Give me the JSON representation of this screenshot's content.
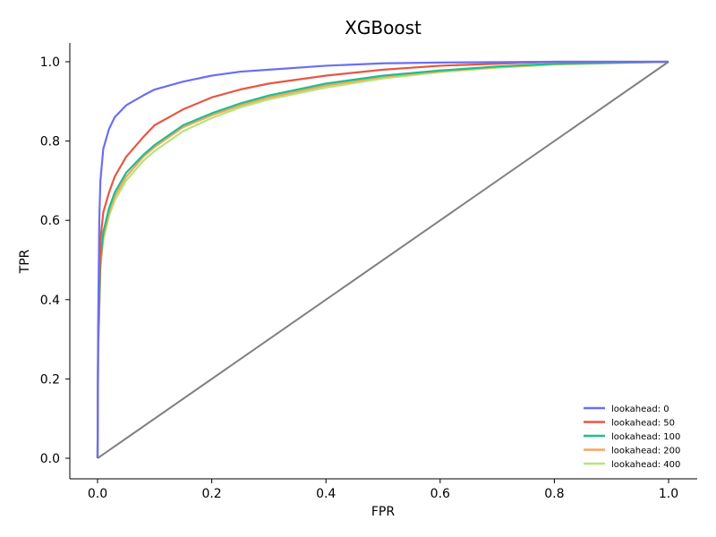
{
  "chart_data": {
    "type": "line",
    "title": "XGBoost",
    "xlabel": "FPR",
    "ylabel": "TPR",
    "xlim": [
      -0.05,
      1.05
    ],
    "ylim": [
      -0.05,
      1.05
    ],
    "xticks": [
      "0.0",
      "0.2",
      "0.4",
      "0.6",
      "0.8",
      "1.0"
    ],
    "yticks": [
      "0.0",
      "0.2",
      "0.4",
      "0.6",
      "0.8",
      "1.0"
    ],
    "grid": false,
    "legend_position": "bottom-right",
    "series": [
      {
        "name": "lookahead: 0",
        "color": "#6a6ff2",
        "points": [
          [
            0,
            0
          ],
          [
            0.001,
            0.33
          ],
          [
            0.003,
            0.6
          ],
          [
            0.005,
            0.7
          ],
          [
            0.01,
            0.78
          ],
          [
            0.02,
            0.83
          ],
          [
            0.03,
            0.86
          ],
          [
            0.05,
            0.89
          ],
          [
            0.08,
            0.915
          ],
          [
            0.1,
            0.93
          ],
          [
            0.15,
            0.95
          ],
          [
            0.2,
            0.965
          ],
          [
            0.25,
            0.975
          ],
          [
            0.3,
            0.98
          ],
          [
            0.4,
            0.99
          ],
          [
            0.5,
            0.996
          ],
          [
            0.6,
            0.998
          ],
          [
            0.8,
            1.0
          ],
          [
            1.0,
            1.0
          ]
        ]
      },
      {
        "name": "lookahead: 50",
        "color": "#e65742",
        "points": [
          [
            0,
            0
          ],
          [
            0.001,
            0.3
          ],
          [
            0.005,
            0.55
          ],
          [
            0.01,
            0.62
          ],
          [
            0.02,
            0.67
          ],
          [
            0.03,
            0.71
          ],
          [
            0.05,
            0.76
          ],
          [
            0.08,
            0.81
          ],
          [
            0.1,
            0.84
          ],
          [
            0.15,
            0.88
          ],
          [
            0.2,
            0.91
          ],
          [
            0.25,
            0.93
          ],
          [
            0.3,
            0.945
          ],
          [
            0.4,
            0.965
          ],
          [
            0.5,
            0.98
          ],
          [
            0.6,
            0.99
          ],
          [
            0.8,
            1.0
          ],
          [
            1.0,
            1.0
          ]
        ]
      },
      {
        "name": "lookahead: 100",
        "color": "#1dbf8e",
        "points": [
          [
            0,
            0
          ],
          [
            0.001,
            0.28
          ],
          [
            0.005,
            0.5
          ],
          [
            0.01,
            0.57
          ],
          [
            0.02,
            0.63
          ],
          [
            0.03,
            0.67
          ],
          [
            0.05,
            0.72
          ],
          [
            0.08,
            0.765
          ],
          [
            0.1,
            0.79
          ],
          [
            0.15,
            0.84
          ],
          [
            0.2,
            0.87
          ],
          [
            0.25,
            0.895
          ],
          [
            0.3,
            0.915
          ],
          [
            0.4,
            0.945
          ],
          [
            0.5,
            0.965
          ],
          [
            0.6,
            0.978
          ],
          [
            0.7,
            0.988
          ],
          [
            0.8,
            0.995
          ],
          [
            1.0,
            1.0
          ]
        ]
      },
      {
        "name": "lookahead: 200",
        "color": "#f7a35c",
        "points": [
          [
            0,
            0
          ],
          [
            0.001,
            0.27
          ],
          [
            0.005,
            0.49
          ],
          [
            0.01,
            0.56
          ],
          [
            0.02,
            0.62
          ],
          [
            0.03,
            0.66
          ],
          [
            0.05,
            0.71
          ],
          [
            0.08,
            0.76
          ],
          [
            0.1,
            0.785
          ],
          [
            0.15,
            0.835
          ],
          [
            0.2,
            0.865
          ],
          [
            0.25,
            0.89
          ],
          [
            0.3,
            0.91
          ],
          [
            0.4,
            0.94
          ],
          [
            0.5,
            0.962
          ],
          [
            0.6,
            0.976
          ],
          [
            0.7,
            0.987
          ],
          [
            0.8,
            0.994
          ],
          [
            1.0,
            1.0
          ]
        ]
      },
      {
        "name": "lookahead: 400",
        "color": "#b3e67a",
        "points": [
          [
            0,
            0
          ],
          [
            0.001,
            0.26
          ],
          [
            0.005,
            0.48
          ],
          [
            0.01,
            0.55
          ],
          [
            0.02,
            0.61
          ],
          [
            0.03,
            0.65
          ],
          [
            0.05,
            0.7
          ],
          [
            0.08,
            0.75
          ],
          [
            0.1,
            0.775
          ],
          [
            0.15,
            0.825
          ],
          [
            0.2,
            0.858
          ],
          [
            0.25,
            0.885
          ],
          [
            0.3,
            0.905
          ],
          [
            0.4,
            0.935
          ],
          [
            0.5,
            0.958
          ],
          [
            0.6,
            0.974
          ],
          [
            0.7,
            0.985
          ],
          [
            0.8,
            0.993
          ],
          [
            1.0,
            1.0
          ]
        ]
      }
    ],
    "reference_line": {
      "color": "#808080",
      "points": [
        [
          0,
          0
        ],
        [
          1,
          1
        ]
      ]
    }
  }
}
